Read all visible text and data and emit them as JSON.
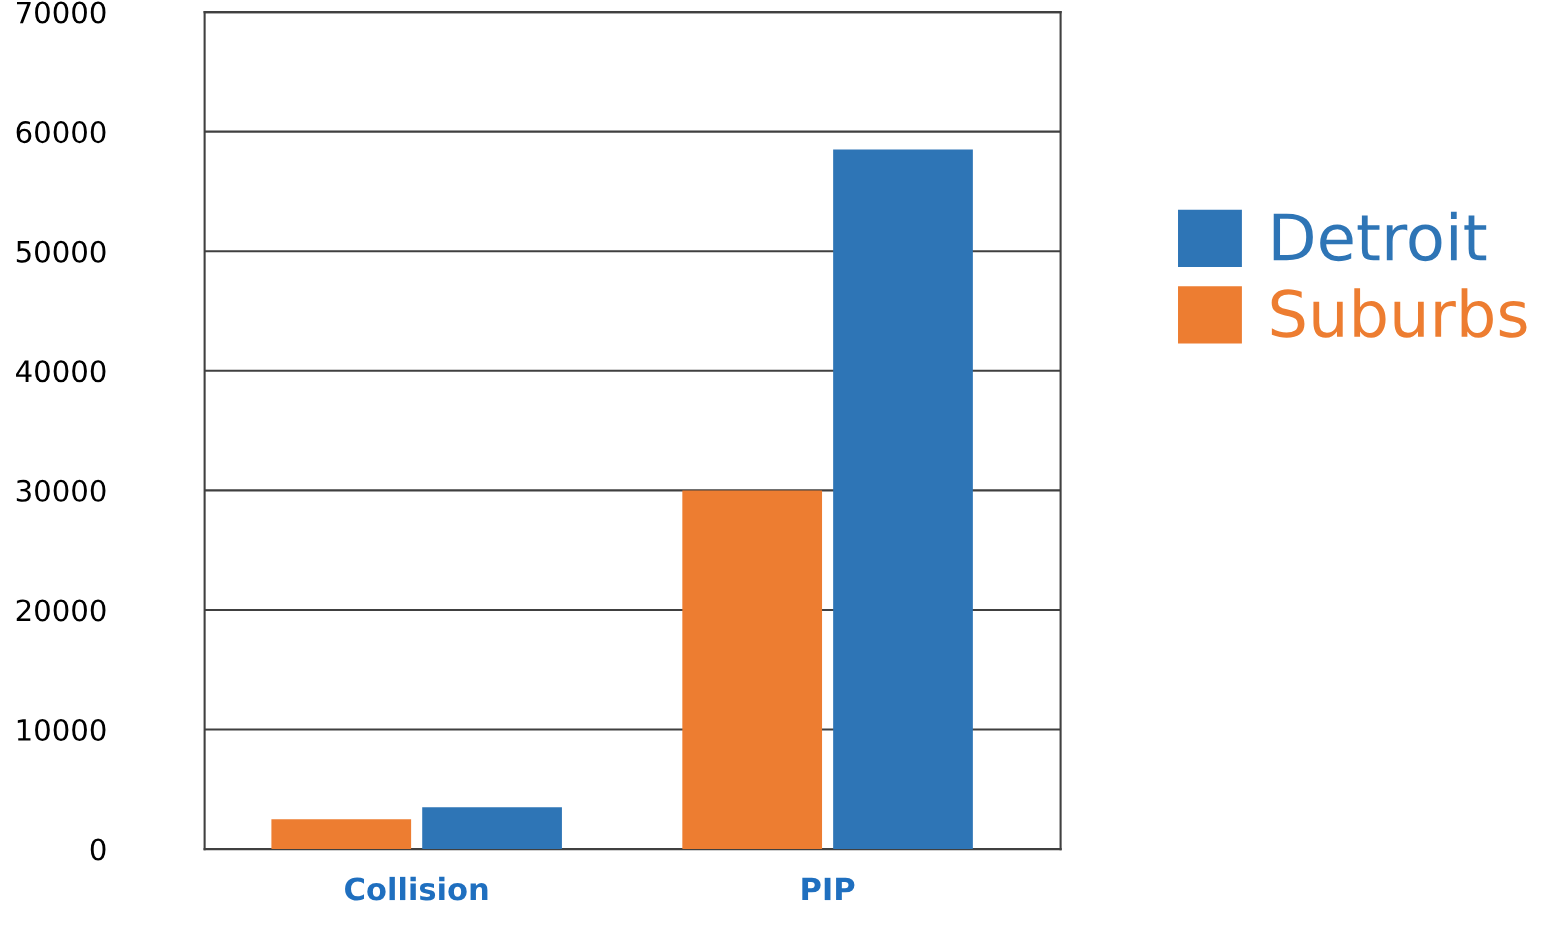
{
  "chart_data": {
    "type": "bar",
    "categories": [
      "Collision",
      "PIP"
    ],
    "series": [
      {
        "name": "Suburbs",
        "color": "#ed7d31",
        "values": [
          2500,
          30000
        ]
      },
      {
        "name": "Detroit",
        "color": "#2e75b6",
        "values": [
          3500,
          58500
        ]
      }
    ],
    "ylim": [
      0,
      70000
    ],
    "yticks": [
      0,
      10000,
      20000,
      30000,
      40000,
      50000,
      60000,
      70000
    ],
    "grid": "y",
    "legend": "right"
  }
}
